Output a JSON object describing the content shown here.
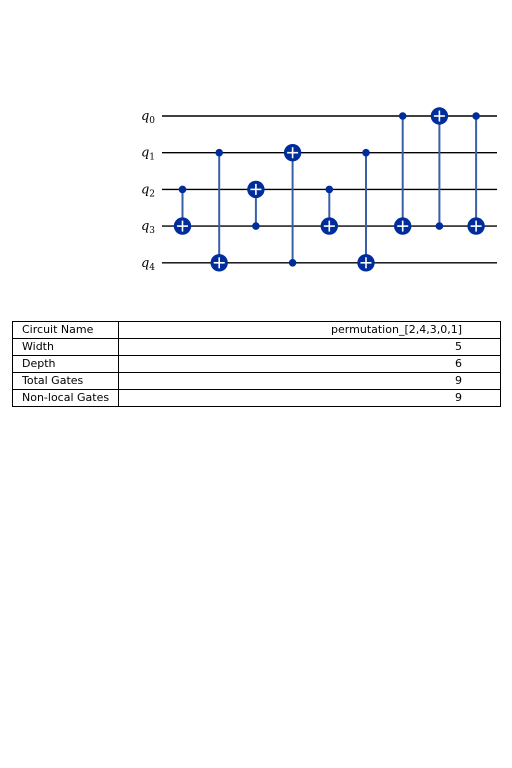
{
  "circuit": {
    "qubits": [
      "0",
      "1",
      "2",
      "3",
      "4"
    ],
    "qubit_prefix": "q",
    "gates": [
      {
        "type": "cx",
        "control": 2,
        "target": 3
      },
      {
        "type": "cx",
        "control": 1,
        "target": 4
      },
      {
        "type": "cx",
        "control": 3,
        "target": 2
      },
      {
        "type": "cx",
        "control": 4,
        "target": 1
      },
      {
        "type": "cx",
        "control": 2,
        "target": 3
      },
      {
        "type": "cx",
        "control": 1,
        "target": 4
      },
      {
        "type": "cx",
        "control": 0,
        "target": 3
      },
      {
        "type": "cx",
        "control": 3,
        "target": 0
      },
      {
        "type": "cx",
        "control": 0,
        "target": 3
      }
    ],
    "colors": {
      "wire": "#000000",
      "gate": "#002d9c",
      "connector": "#3a5fa8",
      "plus": "#ffffff"
    }
  },
  "table": {
    "rows": [
      {
        "label": "Circuit Name",
        "value": "permutation_[2,4,3,0,1]"
      },
      {
        "label": "Width",
        "value": "5"
      },
      {
        "label": "Depth",
        "value": "6"
      },
      {
        "label": "Total Gates",
        "value": "9"
      },
      {
        "label": "Non-local Gates",
        "value": "9"
      }
    ]
  }
}
